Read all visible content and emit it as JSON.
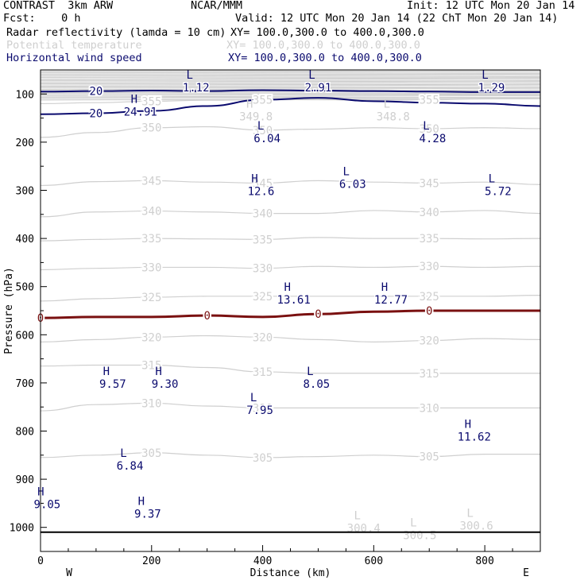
{
  "header": {
    "model": "CONTRAST  3km ARW",
    "org": "NCAR/MMM",
    "init": "Init: 12 UTC Mon 20 Jan 14",
    "fcst": "Fcst:    0 h",
    "valid": "Valid: 12 UTC Mon 20 Jan 14 (22 ChT Mon 20 Jan 14)"
  },
  "legend": [
    {
      "label": "Radar reflectivity (lamda = 10 cm)",
      "xy": "XY= 100.0,300.0 to 400.0,300.0",
      "color": "#000000"
    },
    {
      "label": "Potential temperature",
      "xy": "XY= 100.0,300.0 to 400.0,300.0",
      "color": "#cfcfcf"
    },
    {
      "label": "Horizontal wind speed",
      "xy": "XY= 100.0,300.0 to 400.0,300.0",
      "color": "#0a0a6e"
    }
  ],
  "chart_data": {
    "type": "line",
    "xlabel": "Distance (km)",
    "ylabel": "Pressure (hPa)",
    "xlim": [
      0,
      900
    ],
    "ylim": [
      50,
      1050
    ],
    "x_ticks": [
      0,
      200,
      400,
      600,
      800
    ],
    "y_ticks": [
      100,
      200,
      300,
      400,
      500,
      600,
      700,
      800,
      900,
      1000
    ],
    "x_end_labels": {
      "left": "W",
      "right": "E"
    },
    "series": [
      {
        "kind": "theta",
        "label": "350",
        "color": "#cfcfcf",
        "points": [
          [
            0,
            190
          ],
          [
            100,
            180
          ],
          [
            200,
            170
          ],
          [
            300,
            168
          ],
          [
            400,
            175
          ],
          [
            500,
            173
          ],
          [
            600,
            170
          ],
          [
            700,
            172
          ],
          [
            800,
            170
          ],
          [
            900,
            172
          ]
        ]
      },
      {
        "kind": "theta",
        "label": "345",
        "color": "#cfcfcf",
        "points": [
          [
            0,
            290
          ],
          [
            100,
            282
          ],
          [
            200,
            280
          ],
          [
            300,
            283
          ],
          [
            400,
            285
          ],
          [
            500,
            280
          ],
          [
            600,
            283
          ],
          [
            700,
            285
          ],
          [
            800,
            283
          ],
          [
            900,
            288
          ]
        ]
      },
      {
        "kind": "theta",
        "label": "340",
        "color": "#cfcfcf",
        "points": [
          [
            0,
            355
          ],
          [
            100,
            345
          ],
          [
            200,
            343
          ],
          [
            300,
            345
          ],
          [
            400,
            348
          ],
          [
            500,
            348
          ],
          [
            600,
            342
          ],
          [
            700,
            345
          ],
          [
            800,
            342
          ],
          [
            900,
            348
          ]
        ]
      },
      {
        "kind": "theta",
        "label": "335",
        "color": "#cfcfcf",
        "points": [
          [
            0,
            405
          ],
          [
            100,
            402
          ],
          [
            200,
            400
          ],
          [
            300,
            401
          ],
          [
            400,
            402
          ],
          [
            500,
            398
          ],
          [
            600,
            400
          ],
          [
            700,
            400
          ],
          [
            800,
            401
          ],
          [
            900,
            400
          ]
        ]
      },
      {
        "kind": "theta",
        "label": "330",
        "color": "#cfcfcf",
        "points": [
          [
            0,
            465
          ],
          [
            100,
            462
          ],
          [
            200,
            460
          ],
          [
            300,
            460
          ],
          [
            400,
            462
          ],
          [
            500,
            458
          ],
          [
            600,
            460
          ],
          [
            700,
            458
          ],
          [
            800,
            460
          ],
          [
            900,
            458
          ]
        ]
      },
      {
        "kind": "theta",
        "label": "325",
        "color": "#cfcfcf",
        "points": [
          [
            0,
            530
          ],
          [
            100,
            525
          ],
          [
            200,
            522
          ],
          [
            300,
            520
          ],
          [
            400,
            520
          ],
          [
            500,
            520
          ],
          [
            600,
            520
          ],
          [
            700,
            520
          ],
          [
            800,
            520
          ],
          [
            900,
            518
          ]
        ]
      },
      {
        "kind": "theta",
        "label": "320",
        "color": "#cfcfcf",
        "points": [
          [
            0,
            615
          ],
          [
            100,
            610
          ],
          [
            200,
            605
          ],
          [
            300,
            602
          ],
          [
            400,
            605
          ],
          [
            500,
            610
          ],
          [
            600,
            615
          ],
          [
            700,
            612
          ],
          [
            800,
            608
          ],
          [
            900,
            610
          ]
        ]
      },
      {
        "kind": "theta",
        "label": "315",
        "color": "#cfcfcf",
        "points": [
          [
            0,
            665
          ],
          [
            100,
            663
          ],
          [
            200,
            663
          ],
          [
            300,
            668
          ],
          [
            400,
            677
          ],
          [
            500,
            680
          ],
          [
            600,
            680
          ],
          [
            700,
            680
          ],
          [
            800,
            680
          ],
          [
            900,
            680
          ]
        ]
      },
      {
        "kind": "theta",
        "label": "310",
        "color": "#cfcfcf",
        "points": [
          [
            0,
            758
          ],
          [
            100,
            745
          ],
          [
            200,
            742
          ],
          [
            300,
            748
          ],
          [
            400,
            752
          ],
          [
            500,
            752
          ],
          [
            600,
            752
          ],
          [
            700,
            752
          ],
          [
            800,
            752
          ],
          [
            900,
            752
          ]
        ]
      },
      {
        "kind": "theta",
        "label": "305",
        "color": "#cfcfcf",
        "points": [
          [
            0,
            855
          ],
          [
            100,
            850
          ],
          [
            200,
            845
          ],
          [
            300,
            850
          ],
          [
            400,
            855
          ],
          [
            500,
            853
          ],
          [
            600,
            850
          ],
          [
            700,
            853
          ],
          [
            800,
            848
          ],
          [
            900,
            848
          ]
        ]
      },
      {
        "kind": "theta",
        "label": "355",
        "color": "#cfcfcf",
        "points": [
          [
            0,
            120
          ],
          [
            100,
            118
          ],
          [
            200,
            115
          ],
          [
            300,
            113
          ],
          [
            400,
            112
          ],
          [
            500,
            112
          ],
          [
            600,
            113
          ],
          [
            700,
            112
          ],
          [
            800,
            110
          ],
          [
            900,
            110
          ]
        ]
      },
      {
        "kind": "wind",
        "label": "20",
        "color": "#0a0a6e",
        "points": [
          [
            0,
            142
          ],
          [
            100,
            140
          ],
          [
            200,
            135
          ],
          [
            300,
            125
          ],
          [
            400,
            112
          ],
          [
            500,
            108
          ],
          [
            600,
            115
          ],
          [
            700,
            118
          ],
          [
            800,
            120
          ],
          [
            900,
            125
          ]
        ]
      },
      {
        "kind": "wind",
        "label": "20",
        "color": "#0a0a6e",
        "points": [
          [
            0,
            95
          ],
          [
            100,
            94
          ],
          [
            200,
            93
          ],
          [
            300,
            94
          ],
          [
            400,
            92
          ],
          [
            500,
            93
          ],
          [
            600,
            94
          ],
          [
            700,
            95
          ],
          [
            800,
            96
          ],
          [
            900,
            96
          ]
        ]
      },
      {
        "kind": "freezing",
        "label": "0",
        "color": "#7a1010",
        "points": [
          [
            0,
            565
          ],
          [
            100,
            563
          ],
          [
            200,
            563
          ],
          [
            300,
            560
          ],
          [
            400,
            563
          ],
          [
            500,
            557
          ],
          [
            600,
            552
          ],
          [
            700,
            550
          ],
          [
            800,
            550
          ],
          [
            900,
            550
          ]
        ]
      }
    ],
    "extrema": [
      {
        "type": "L",
        "value": "1.12",
        "x": 280,
        "p": 75,
        "color": "#0a0a6e"
      },
      {
        "type": "L",
        "value": "2.91",
        "x": 500,
        "p": 75,
        "color": "#0a0a6e"
      },
      {
        "type": "L",
        "value": "1.29",
        "x": 812,
        "p": 75,
        "color": "#0a0a6e"
      },
      {
        "type": "H",
        "value": "24.91",
        "x": 180,
        "p": 125,
        "color": "#0a0a6e"
      },
      {
        "type": "H",
        "value": "349.8",
        "x": 388,
        "p": 135,
        "color": "#cfcfcf"
      },
      {
        "type": "L",
        "value": "348.8",
        "x": 635,
        "p": 135,
        "color": "#cfcfcf"
      },
      {
        "type": "L",
        "value": "6.04",
        "x": 408,
        "p": 180,
        "color": "#0a0a6e"
      },
      {
        "type": "L",
        "value": "4.28",
        "x": 706,
        "p": 180,
        "color": "#0a0a6e"
      },
      {
        "type": "H",
        "value": "12.6",
        "x": 397,
        "p": 290,
        "color": "#0a0a6e"
      },
      {
        "type": "L",
        "value": "6.03",
        "x": 562,
        "p": 275,
        "color": "#0a0a6e"
      },
      {
        "type": "L",
        "value": "5.72",
        "x": 824,
        "p": 290,
        "color": "#0a0a6e"
      },
      {
        "type": "H",
        "value": "13.61",
        "x": 456,
        "p": 515,
        "color": "#0a0a6e"
      },
      {
        "type": "H",
        "value": "12.77",
        "x": 631,
        "p": 515,
        "color": "#0a0a6e"
      },
      {
        "type": "H",
        "value": "9.57",
        "x": 130,
        "p": 690,
        "color": "#0a0a6e"
      },
      {
        "type": "H",
        "value": "9.30",
        "x": 224,
        "p": 690,
        "color": "#0a0a6e"
      },
      {
        "type": "L",
        "value": "8.05",
        "x": 497,
        "p": 690,
        "color": "#0a0a6e"
      },
      {
        "type": "L",
        "value": "7.95",
        "x": 395,
        "p": 745,
        "color": "#0a0a6e"
      },
      {
        "type": "H",
        "value": "11.62",
        "x": 781,
        "p": 800,
        "color": "#0a0a6e"
      },
      {
        "type": "L",
        "value": "6.84",
        "x": 161,
        "p": 860,
        "color": "#0a0a6e"
      },
      {
        "type": "H",
        "value": "9.05",
        "x": 12,
        "p": 940,
        "color": "#0a0a6e"
      },
      {
        "type": "H",
        "value": "9.37",
        "x": 193,
        "p": 960,
        "color": "#0a0a6e"
      },
      {
        "type": "L",
        "value": "300.4",
        "x": 582,
        "p": 990,
        "color": "#cfcfcf"
      },
      {
        "type": "L",
        "value": "300.5",
        "x": 683,
        "p": 1005,
        "color": "#cfcfcf"
      },
      {
        "type": "L",
        "value": "300.6",
        "x": 785,
        "p": 985,
        "color": "#cfcfcf"
      }
    ],
    "ground_pressure": 1010,
    "colors": {
      "theta": "#cfcfcf",
      "wind": "#0a0a6e",
      "freezing": "#7a1010",
      "axis": "#000000"
    }
  }
}
